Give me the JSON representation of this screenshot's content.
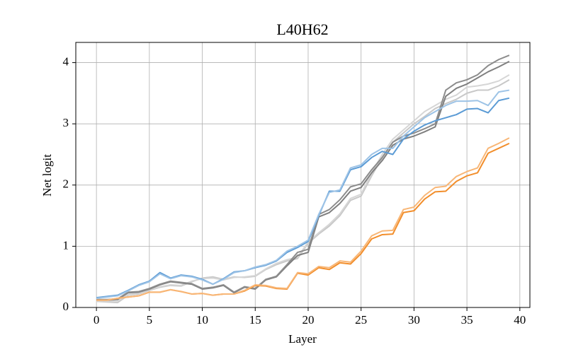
{
  "chart_data": {
    "type": "line",
    "title": "L40H62",
    "x_label": "Layer",
    "y_label": "Net logit",
    "x": [
      0,
      1,
      2,
      3,
      4,
      5,
      6,
      7,
      8,
      9,
      10,
      11,
      12,
      13,
      14,
      15,
      16,
      17,
      18,
      19,
      20,
      21,
      22,
      23,
      24,
      25,
      26,
      27,
      28,
      29,
      30,
      31,
      32,
      33,
      34,
      35,
      36,
      37,
      38,
      39
    ],
    "xlim": [
      -1.95,
      40.95
    ],
    "xticks": [
      0,
      5,
      10,
      15,
      20,
      25,
      30,
      35,
      40
    ],
    "ylim": [
      0,
      4.33
    ],
    "yticks": [
      0,
      1,
      2,
      3,
      4
    ],
    "grid": true,
    "series": [
      {
        "color": "#c8c8c8",
        "values": [
          0.1,
          0.09,
          0.08,
          0.2,
          0.22,
          0.28,
          0.33,
          0.36,
          0.35,
          0.42,
          0.48,
          0.5,
          0.46,
          0.5,
          0.49,
          0.51,
          0.62,
          0.7,
          0.76,
          0.8,
          1.05,
          1.2,
          1.33,
          1.5,
          1.75,
          1.82,
          2.15,
          2.45,
          2.7,
          2.85,
          3.0,
          3.12,
          3.25,
          3.33,
          3.4,
          3.5,
          3.55,
          3.55,
          3.62,
          3.72
        ]
      },
      {
        "color": "#d6d6d6",
        "values": [
          0.1,
          0.1,
          0.1,
          0.21,
          0.23,
          0.29,
          0.34,
          0.37,
          0.36,
          0.43,
          0.47,
          0.48,
          0.45,
          0.49,
          0.5,
          0.52,
          0.63,
          0.72,
          0.78,
          0.82,
          1.07,
          1.22,
          1.36,
          1.53,
          1.78,
          1.85,
          2.2,
          2.5,
          2.75,
          2.9,
          3.05,
          3.2,
          3.3,
          3.4,
          3.47,
          3.6,
          3.62,
          3.65,
          3.7,
          3.8
        ]
      },
      {
        "color": "#7f7f7f",
        "values": [
          0.12,
          0.12,
          0.13,
          0.24,
          0.25,
          0.3,
          0.37,
          0.42,
          0.4,
          0.38,
          0.3,
          0.32,
          0.36,
          0.24,
          0.33,
          0.3,
          0.45,
          0.5,
          0.68,
          0.85,
          0.9,
          1.48,
          1.55,
          1.7,
          1.9,
          1.96,
          2.2,
          2.4,
          2.65,
          2.75,
          2.8,
          2.87,
          2.95,
          3.45,
          3.58,
          3.65,
          3.75,
          3.85,
          3.93,
          4.02
        ]
      },
      {
        "color": "#8c8c8c",
        "values": [
          0.13,
          0.13,
          0.14,
          0.25,
          0.26,
          0.31,
          0.38,
          0.43,
          0.41,
          0.39,
          0.31,
          0.33,
          0.37,
          0.25,
          0.34,
          0.31,
          0.46,
          0.51,
          0.7,
          0.9,
          0.95,
          1.52,
          1.6,
          1.76,
          1.97,
          2.02,
          2.25,
          2.45,
          2.7,
          2.8,
          2.85,
          2.92,
          3.0,
          3.55,
          3.67,
          3.72,
          3.8,
          3.95,
          4.05,
          4.12
        ]
      },
      {
        "color": "#5b9bd5",
        "values": [
          0.16,
          0.18,
          0.2,
          0.28,
          0.37,
          0.43,
          0.57,
          0.48,
          0.53,
          0.51,
          0.46,
          0.38,
          0.47,
          0.58,
          0.6,
          0.65,
          0.69,
          0.76,
          0.9,
          0.98,
          1.08,
          1.5,
          1.9,
          1.9,
          2.25,
          2.3,
          2.45,
          2.55,
          2.5,
          2.75,
          2.88,
          2.98,
          3.05,
          3.1,
          3.15,
          3.24,
          3.25,
          3.18,
          3.38,
          3.42
        ]
      },
      {
        "color": "#9dc3e6",
        "values": [
          0.15,
          0.17,
          0.19,
          0.27,
          0.36,
          0.42,
          0.55,
          0.47,
          0.52,
          0.5,
          0.45,
          0.38,
          0.46,
          0.57,
          0.6,
          0.66,
          0.7,
          0.77,
          0.92,
          1.0,
          1.1,
          1.52,
          1.88,
          1.92,
          2.28,
          2.33,
          2.5,
          2.6,
          2.6,
          2.8,
          2.95,
          3.1,
          3.2,
          3.3,
          3.37,
          3.37,
          3.38,
          3.3,
          3.52,
          3.55
        ]
      },
      {
        "color": "#f28e2b",
        "values": [
          0.12,
          0.12,
          0.15,
          0.17,
          0.19,
          0.25,
          0.25,
          0.29,
          0.26,
          0.22,
          0.23,
          0.2,
          0.22,
          0.22,
          0.27,
          0.36,
          0.35,
          0.31,
          0.3,
          0.56,
          0.53,
          0.65,
          0.62,
          0.73,
          0.71,
          0.88,
          1.12,
          1.19,
          1.2,
          1.55,
          1.58,
          1.77,
          1.89,
          1.9,
          2.06,
          2.15,
          2.2,
          2.52,
          2.6,
          2.68
        ]
      },
      {
        "color": "#f8b676",
        "values": [
          0.12,
          0.12,
          0.15,
          0.17,
          0.19,
          0.25,
          0.25,
          0.29,
          0.26,
          0.22,
          0.23,
          0.2,
          0.22,
          0.22,
          0.28,
          0.37,
          0.36,
          0.32,
          0.31,
          0.57,
          0.55,
          0.67,
          0.65,
          0.76,
          0.74,
          0.92,
          1.17,
          1.25,
          1.26,
          1.6,
          1.64,
          1.83,
          1.96,
          1.98,
          2.14,
          2.22,
          2.28,
          2.6,
          2.68,
          2.77
        ]
      }
    ]
  }
}
